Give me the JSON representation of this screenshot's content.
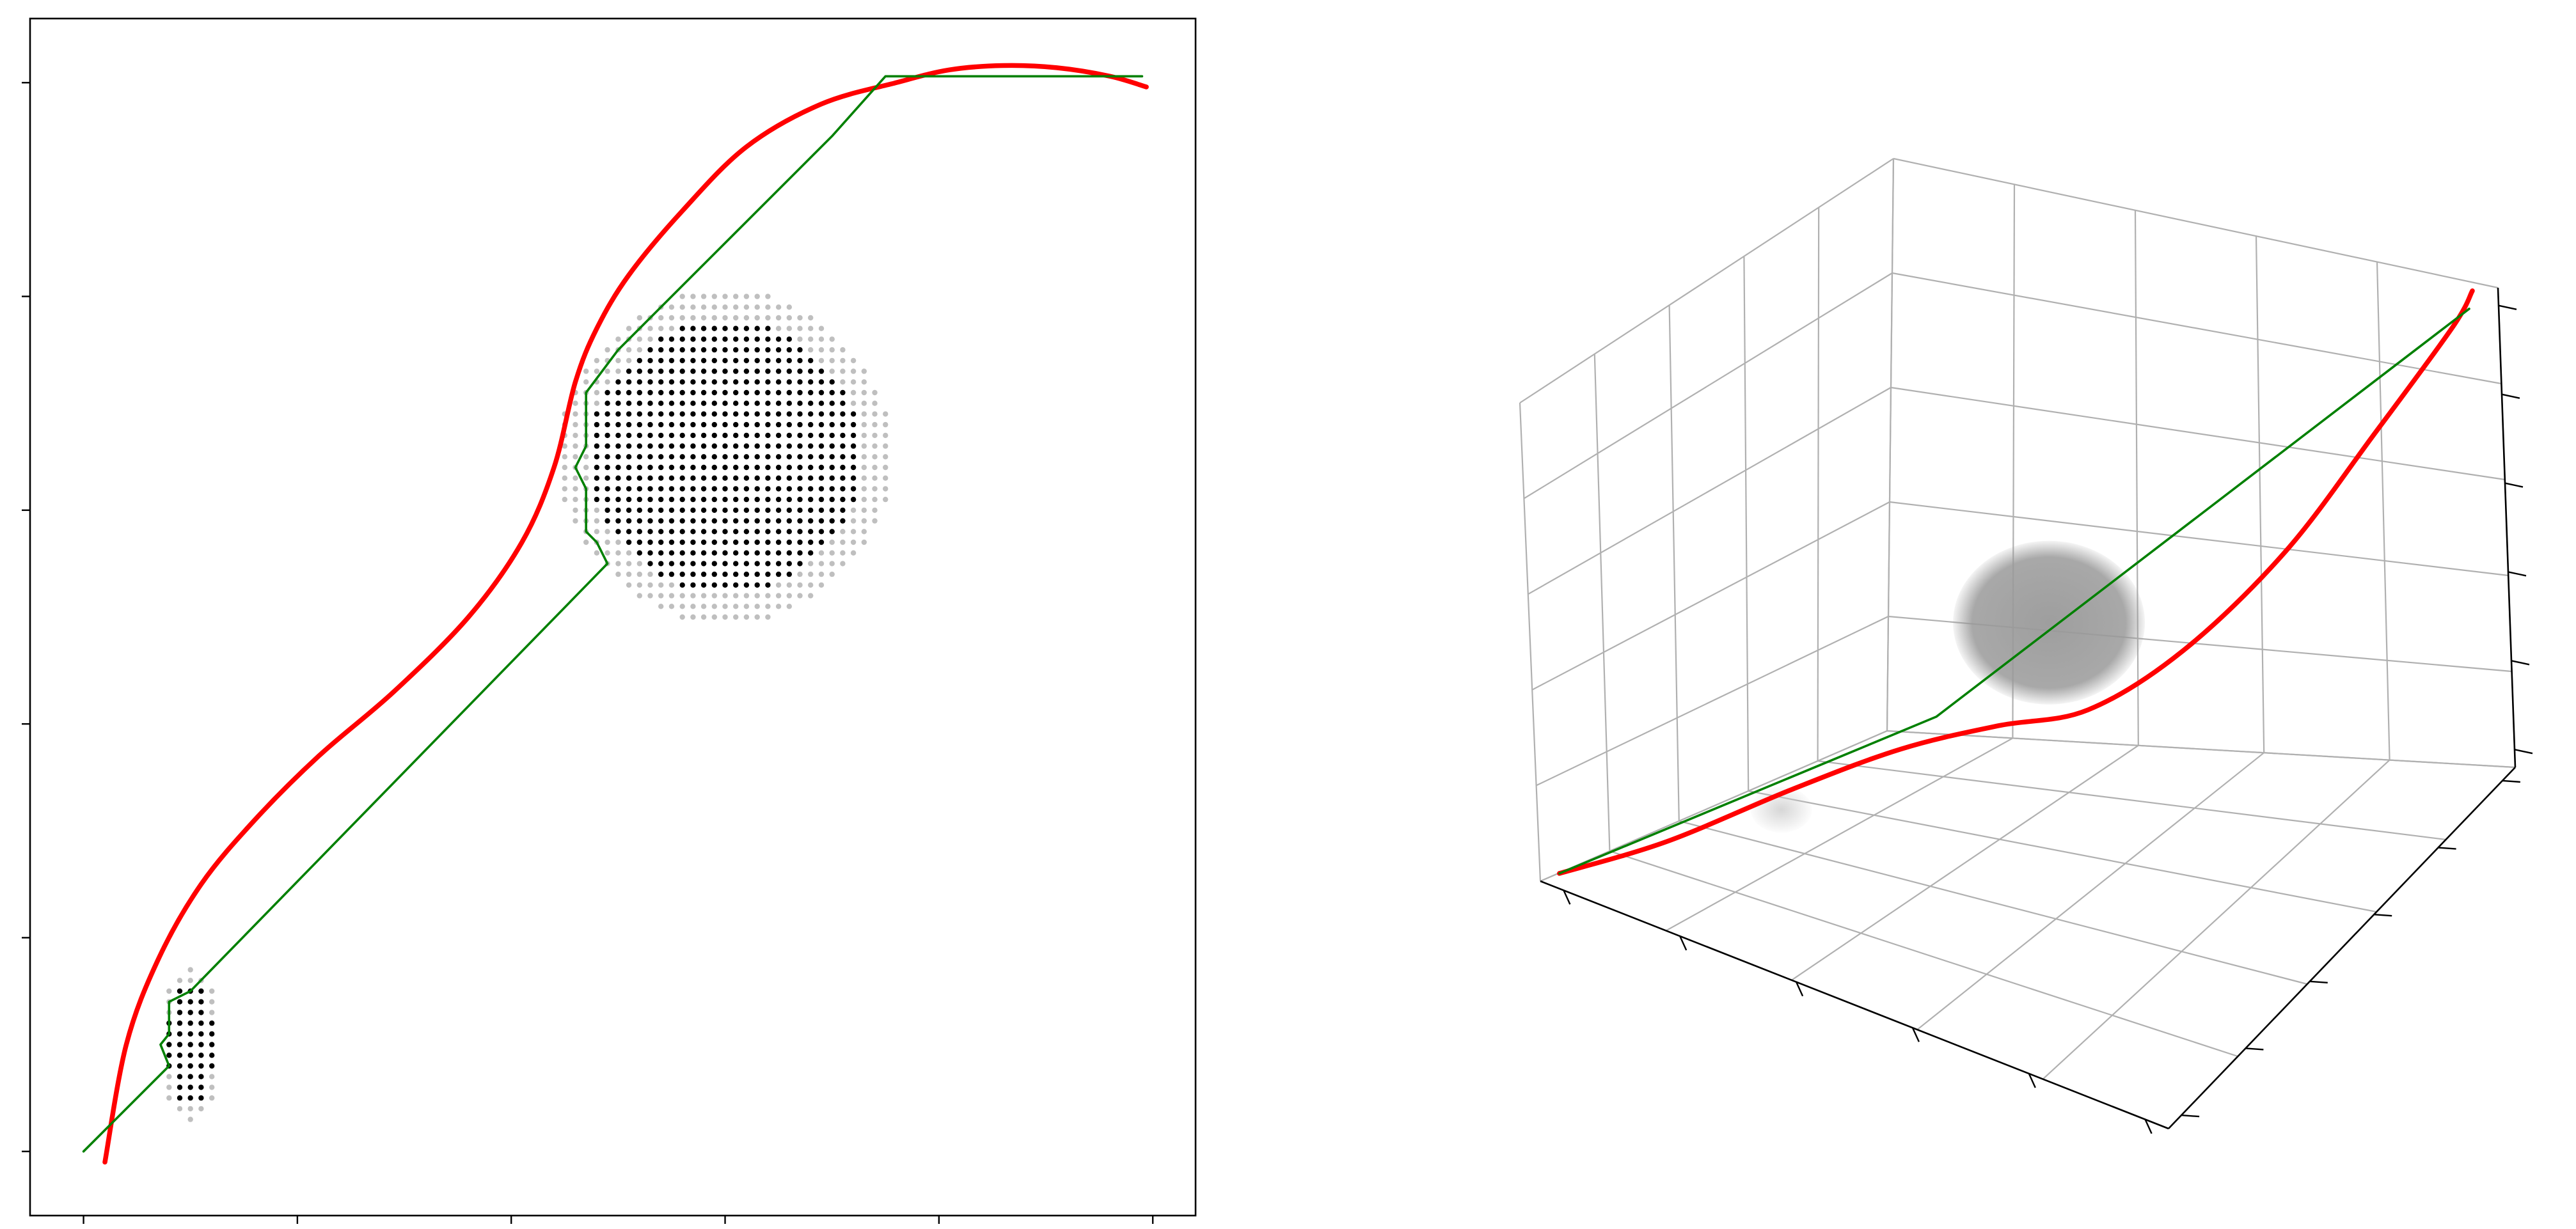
{
  "figure": {
    "panels": 2
  },
  "chart_data": [
    {
      "type": "line",
      "title": "",
      "xlabel": "",
      "ylabel": "",
      "grid": false,
      "legend": "none",
      "xlim": [
        -0.25,
        5.2
      ],
      "ylim": [
        -0.3,
        5.3
      ],
      "xticks": [
        0,
        1,
        2,
        3,
        4,
        5
      ],
      "yticks": [
        0,
        1,
        2,
        3,
        4,
        5
      ],
      "tick_labels_visible": false,
      "colors": {
        "smooth": "#ff0000",
        "path": "#008000",
        "obstacle_core": "#000000",
        "obstacle_edge": "#bfbfbf"
      },
      "series": [
        {
          "style": "thick-red-curve",
          "x": [
            0.1,
            0.2,
            0.35,
            0.55,
            0.8,
            1.1,
            1.45,
            1.8,
            2.05,
            2.2,
            2.3,
            2.4,
            2.55,
            2.8,
            3.1,
            3.45,
            3.8,
            4.05,
            4.3,
            4.55,
            4.8,
            4.97
          ],
          "y": [
            -0.05,
            0.5,
            0.9,
            1.25,
            1.55,
            1.85,
            2.15,
            2.5,
            2.85,
            3.2,
            3.6,
            3.85,
            4.1,
            4.4,
            4.7,
            4.9,
            5.0,
            5.06,
            5.08,
            5.07,
            5.03,
            4.98
          ]
        },
        {
          "style": "thin-green-path",
          "x": [
            0.0,
            0.4,
            0.36,
            0.4,
            0.4,
            0.5,
            2.45,
            2.4,
            2.35,
            2.35,
            2.3,
            2.35,
            2.35,
            2.5,
            3.5,
            3.75,
            4.4,
            4.95
          ],
          "y": [
            0.0,
            0.4,
            0.5,
            0.55,
            0.7,
            0.75,
            2.75,
            2.85,
            2.9,
            3.1,
            3.2,
            3.3,
            3.55,
            3.75,
            4.75,
            5.03,
            5.03,
            5.03
          ]
        }
      ],
      "obstacles": [
        {
          "center": [
            3.0,
            3.25
          ],
          "radius": 0.72,
          "spacing": 0.05
        },
        {
          "center": [
            0.5,
            0.5
          ],
          "rx": 0.13,
          "ry": 0.33,
          "spacing": 0.05
        }
      ]
    },
    {
      "type": "line",
      "projection": "3d",
      "title": "",
      "xlabel": "",
      "ylabel": "",
      "zlabel": "",
      "grid": true,
      "legend": "none",
      "xlim": [
        0,
        1
      ],
      "ylim": [
        0,
        1
      ],
      "zlim": [
        0,
        1
      ],
      "tick_labels_visible": false,
      "colors": {
        "smooth": "#ff0000",
        "path": "#008000",
        "obstacle": "#999999",
        "obstacle_small": "#cccccc",
        "grid": "#b0b0b0"
      },
      "series": [
        {
          "style": "thick-red-curve",
          "points": [
            [
              0.02,
              0.02,
              0.02
            ],
            [
              0.15,
              0.1,
              0.12
            ],
            [
              0.3,
              0.2,
              0.25
            ],
            [
              0.42,
              0.3,
              0.33
            ],
            [
              0.52,
              0.4,
              0.36
            ],
            [
              0.62,
              0.48,
              0.38
            ],
            [
              0.72,
              0.58,
              0.47
            ],
            [
              0.82,
              0.7,
              0.62
            ],
            [
              0.9,
              0.82,
              0.8
            ],
            [
              0.96,
              0.94,
              0.95
            ],
            [
              0.97,
              0.98,
              1.0
            ]
          ]
        },
        {
          "style": "thin-green-path",
          "points": [
            [
              0.02,
              0.02,
              0.02
            ],
            [
              0.45,
              0.35,
              0.38
            ],
            [
              0.97,
              0.97,
              0.97
            ]
          ]
        }
      ],
      "obstacles": [
        {
          "center": [
            0.55,
            0.5,
            0.52
          ],
          "radius": 0.14
        },
        {
          "center": [
            0.28,
            0.2,
            0.2
          ],
          "radius": 0.03
        }
      ]
    }
  ]
}
